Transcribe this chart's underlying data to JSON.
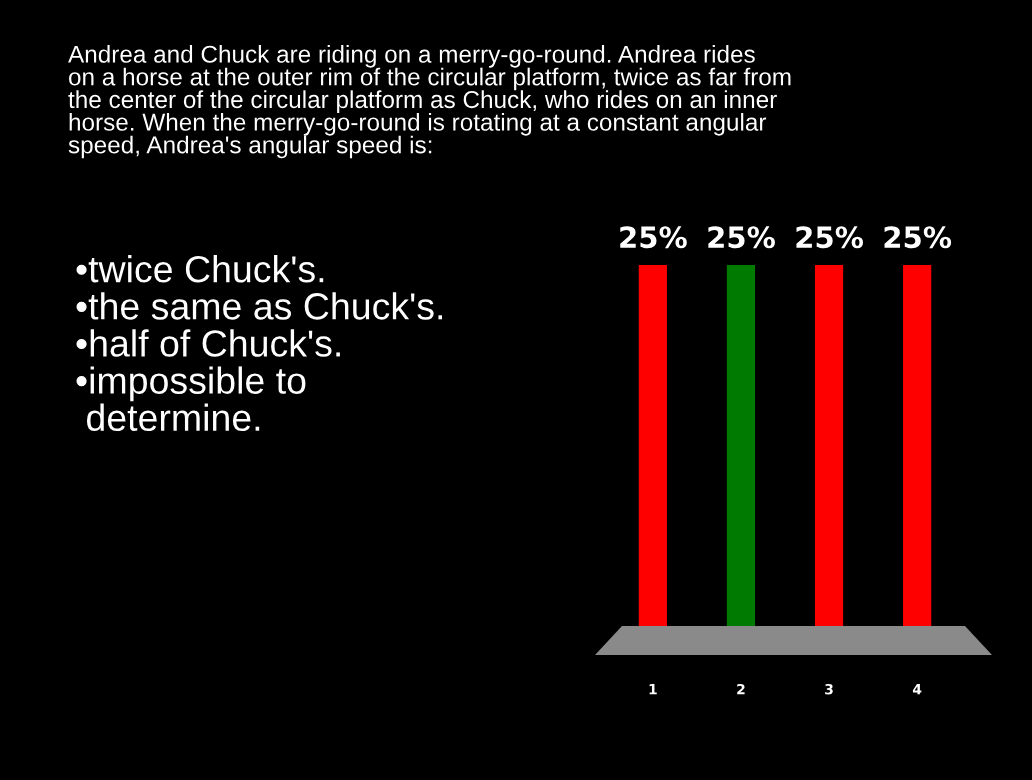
{
  "chart_data": {
    "type": "bar",
    "title": "Andrea and Chuck are riding on a merry-go-round. Andrea rides\non a horse at the outer rim of the circular platform, twice as far from\nthe center of the circular platform as Chuck, who rides on an inner\nhorse. When the merry-go-round is rotating at a constant angular\nspeed, Andrea's angular speed is:",
    "annotations": [
      "•twice Chuck's.\n•the same as Chuck's.\n•half of Chuck's.\n•impossible to\n determine."
    ],
    "categories": [
      "1",
      "2",
      "3",
      "4"
    ],
    "values": [
      25,
      25,
      25,
      25
    ],
    "colors": [
      "#ff0000",
      "#007a00",
      "#ff0000",
      "#ff0000"
    ],
    "value_labels": [
      "25%",
      "25%",
      "25%",
      "25%"
    ],
    "tick_labels": "x"
  }
}
